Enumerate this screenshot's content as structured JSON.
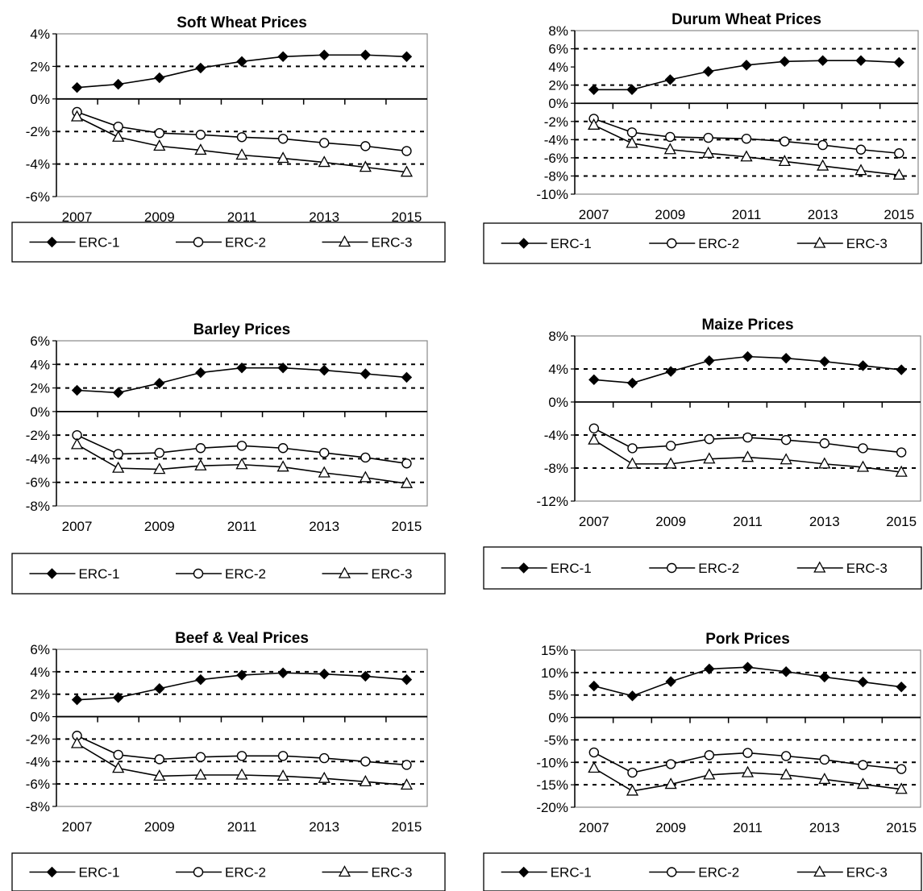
{
  "chart_data": [
    {
      "type": "line",
      "title": "Soft Wheat Prices",
      "x": [
        2007,
        2008,
        2009,
        2010,
        2011,
        2012,
        2013,
        2014,
        2015
      ],
      "x_tick_labels": [
        "2007",
        "2009",
        "2011",
        "2013",
        "2015"
      ],
      "ylim": [
        -6,
        4
      ],
      "y_ticks": [
        4,
        2,
        0,
        -2,
        -4,
        -6
      ],
      "y_tick_labels": [
        "4%",
        "2%",
        "0%",
        "-2%",
        "-4%",
        "-6%"
      ],
      "gridlines": [
        2,
        -2,
        -4
      ],
      "series": [
        {
          "name": "ERC-1",
          "marker": "diamond",
          "values": [
            0.7,
            0.9,
            1.3,
            1.9,
            2.3,
            2.6,
            2.7,
            2.7,
            2.6
          ]
        },
        {
          "name": "ERC-2",
          "marker": "circle",
          "values": [
            -0.8,
            -1.7,
            -2.1,
            -2.2,
            -2.35,
            -2.45,
            -2.7,
            -2.9,
            -3.2
          ]
        },
        {
          "name": "ERC-3",
          "marker": "triangle",
          "values": [
            -1.1,
            -2.35,
            -2.9,
            -3.15,
            -3.45,
            -3.65,
            -3.9,
            -4.2,
            -4.5
          ]
        }
      ],
      "legend": "bottom"
    },
    {
      "type": "line",
      "title": "Durum Wheat Prices",
      "x": [
        2007,
        2008,
        2009,
        2010,
        2011,
        2012,
        2013,
        2014,
        2015
      ],
      "x_tick_labels": [
        "2007",
        "2009",
        "2011",
        "2013",
        "2015"
      ],
      "ylim": [
        -10,
        8
      ],
      "y_ticks": [
        8,
        6,
        4,
        2,
        0,
        -2,
        -4,
        -6,
        -8,
        -10
      ],
      "y_tick_labels": [
        "8%",
        "6%",
        "4%",
        "2%",
        "0%",
        "-2%",
        "-4%",
        "-6%",
        "-8%",
        "-10%"
      ],
      "gridlines": [
        6,
        2,
        -2,
        -4,
        -6,
        -8
      ],
      "series": [
        {
          "name": "ERC-1",
          "marker": "diamond",
          "values": [
            1.5,
            1.5,
            2.6,
            3.5,
            4.2,
            4.6,
            4.7,
            4.7,
            4.5
          ]
        },
        {
          "name": "ERC-2",
          "marker": "circle",
          "values": [
            -1.7,
            -3.2,
            -3.7,
            -3.8,
            -3.9,
            -4.2,
            -4.6,
            -5.1,
            -5.5
          ]
        },
        {
          "name": "ERC-3",
          "marker": "triangle",
          "values": [
            -2.4,
            -4.4,
            -5.1,
            -5.5,
            -5.9,
            -6.4,
            -6.9,
            -7.4,
            -7.9
          ]
        }
      ],
      "legend": "bottom"
    },
    {
      "type": "line",
      "title": "Barley Prices",
      "x": [
        2007,
        2008,
        2009,
        2010,
        2011,
        2012,
        2013,
        2014,
        2015
      ],
      "x_tick_labels": [
        "2007",
        "2009",
        "2011",
        "2013",
        "2015"
      ],
      "ylim": [
        -8,
        6
      ],
      "y_ticks": [
        6,
        4,
        2,
        0,
        -2,
        -4,
        -6,
        -8
      ],
      "y_tick_labels": [
        "6%",
        "4%",
        "2%",
        "0%",
        "-2%",
        "-4%",
        "-6%",
        "-8%"
      ],
      "gridlines": [
        4,
        2,
        -2,
        -4,
        -6
      ],
      "series": [
        {
          "name": "ERC-1",
          "marker": "diamond",
          "values": [
            1.8,
            1.6,
            2.4,
            3.3,
            3.7,
            3.7,
            3.5,
            3.2,
            2.9
          ]
        },
        {
          "name": "ERC-2",
          "marker": "circle",
          "values": [
            -2.0,
            -3.6,
            -3.5,
            -3.1,
            -2.9,
            -3.1,
            -3.5,
            -3.9,
            -4.4
          ]
        },
        {
          "name": "ERC-3",
          "marker": "triangle",
          "values": [
            -2.8,
            -4.8,
            -4.9,
            -4.6,
            -4.5,
            -4.7,
            -5.2,
            -5.6,
            -6.1
          ]
        }
      ],
      "legend": "bottom"
    },
    {
      "type": "line",
      "title": "Maize Prices",
      "x": [
        2007,
        2008,
        2009,
        2010,
        2011,
        2012,
        2013,
        2014,
        2015
      ],
      "x_tick_labels": [
        "2007",
        "2009",
        "2011",
        "2013",
        "2015"
      ],
      "ylim": [
        -12,
        8
      ],
      "y_ticks": [
        8,
        4,
        0,
        -4,
        -8,
        -12
      ],
      "y_tick_labels": [
        "8%",
        "4%",
        "0%",
        "-4%",
        "-8%",
        "-12%"
      ],
      "gridlines": [
        4,
        -4,
        -8
      ],
      "series": [
        {
          "name": "ERC-1",
          "marker": "diamond",
          "values": [
            2.7,
            2.3,
            3.7,
            5.0,
            5.5,
            5.3,
            4.9,
            4.4,
            3.9
          ]
        },
        {
          "name": "ERC-2",
          "marker": "circle",
          "values": [
            -3.2,
            -5.6,
            -5.3,
            -4.5,
            -4.3,
            -4.6,
            -5.0,
            -5.6,
            -6.1
          ]
        },
        {
          "name": "ERC-3",
          "marker": "triangle",
          "values": [
            -4.6,
            -7.5,
            -7.5,
            -6.9,
            -6.7,
            -7.0,
            -7.5,
            -7.9,
            -8.5
          ]
        }
      ],
      "legend": "bottom"
    },
    {
      "type": "line",
      "title": "Beef & Veal Prices",
      "x": [
        2007,
        2008,
        2009,
        2010,
        2011,
        2012,
        2013,
        2014,
        2015
      ],
      "x_tick_labels": [
        "2007",
        "2009",
        "2011",
        "2013",
        "2015"
      ],
      "ylim": [
        -8,
        6
      ],
      "y_ticks": [
        6,
        4,
        2,
        0,
        -2,
        -4,
        -6,
        -8
      ],
      "y_tick_labels": [
        "6%",
        "4%",
        "2%",
        "0%",
        "-2%",
        "-4%",
        "-6%",
        "-8%"
      ],
      "gridlines": [
        4,
        2,
        -2,
        -4,
        -6
      ],
      "series": [
        {
          "name": "ERC-1",
          "marker": "diamond",
          "values": [
            1.5,
            1.7,
            2.5,
            3.3,
            3.7,
            3.9,
            3.8,
            3.6,
            3.3
          ]
        },
        {
          "name": "ERC-2",
          "marker": "circle",
          "values": [
            -1.7,
            -3.4,
            -3.8,
            -3.6,
            -3.5,
            -3.5,
            -3.7,
            -4.0,
            -4.3
          ]
        },
        {
          "name": "ERC-3",
          "marker": "triangle",
          "values": [
            -2.4,
            -4.6,
            -5.3,
            -5.2,
            -5.2,
            -5.3,
            -5.5,
            -5.8,
            -6.1
          ]
        }
      ],
      "legend": "bottom"
    },
    {
      "type": "line",
      "title": "Pork Prices",
      "x": [
        2007,
        2008,
        2009,
        2010,
        2011,
        2012,
        2013,
        2014,
        2015
      ],
      "x_tick_labels": [
        "2007",
        "2009",
        "2011",
        "2013",
        "2015"
      ],
      "ylim": [
        -20,
        15
      ],
      "y_ticks": [
        15,
        10,
        5,
        0,
        -5,
        -10,
        -15,
        -20
      ],
      "y_tick_labels": [
        "15%",
        "10%",
        "5%",
        "0%",
        "-5%",
        "-10%",
        "-15%",
        "-20%"
      ],
      "gridlines": [
        10,
        5,
        -5,
        -10,
        -15
      ],
      "series": [
        {
          "name": "ERC-1",
          "marker": "diamond",
          "values": [
            7.0,
            4.8,
            8.0,
            10.8,
            11.2,
            10.2,
            9.0,
            7.9,
            6.8
          ]
        },
        {
          "name": "ERC-2",
          "marker": "circle",
          "values": [
            -7.8,
            -12.3,
            -10.4,
            -8.4,
            -7.9,
            -8.6,
            -9.4,
            -10.6,
            -11.5
          ]
        },
        {
          "name": "ERC-3",
          "marker": "triangle",
          "values": [
            -11.3,
            -16.4,
            -14.9,
            -12.8,
            -12.3,
            -12.8,
            -13.8,
            -14.9,
            -16.0
          ]
        }
      ],
      "legend": "bottom"
    }
  ]
}
